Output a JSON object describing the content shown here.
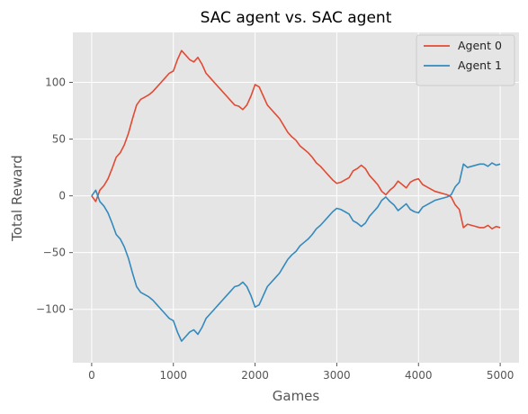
{
  "chart_data": {
    "type": "line",
    "title": "SAC agent vs. SAC agent",
    "xlabel": "Games",
    "ylabel": "Total Reward",
    "xlim": [
      -230,
      5230
    ],
    "ylim": [
      -147,
      144
    ],
    "xticks": [
      0,
      1000,
      2000,
      3000,
      4000,
      5000
    ],
    "yticks": [
      -100,
      -50,
      0,
      50,
      100
    ],
    "xtick_labels": [
      "0",
      "1000",
      "2000",
      "3000",
      "4000",
      "5000"
    ],
    "ytick_labels": [
      "−100",
      "−50",
      "0",
      "50",
      "100"
    ],
    "grid": true,
    "legend_position": "top-right",
    "series": [
      {
        "name": "Agent 0",
        "color": "#E24A33",
        "x": [
          0,
          50,
          100,
          150,
          200,
          250,
          300,
          350,
          400,
          450,
          500,
          550,
          600,
          650,
          700,
          750,
          800,
          850,
          900,
          950,
          1000,
          1050,
          1100,
          1150,
          1200,
          1250,
          1300,
          1350,
          1400,
          1450,
          1500,
          1550,
          1600,
          1650,
          1700,
          1750,
          1800,
          1850,
          1900,
          1950,
          2000,
          2050,
          2100,
          2150,
          2200,
          2250,
          2300,
          2350,
          2400,
          2450,
          2500,
          2550,
          2600,
          2650,
          2700,
          2750,
          2800,
          2850,
          2900,
          2950,
          3000,
          3050,
          3100,
          3150,
          3200,
          3250,
          3300,
          3350,
          3400,
          3450,
          3500,
          3550,
          3600,
          3650,
          3700,
          3750,
          3800,
          3850,
          3900,
          3950,
          4000,
          4050,
          4100,
          4150,
          4200,
          4250,
          4300,
          4350,
          4400,
          4450,
          4500,
          4550,
          4600,
          4650,
          4700,
          4750,
          4800,
          4850,
          4900,
          4950,
          5000
        ],
        "y": [
          0,
          -5,
          5,
          9,
          15,
          24,
          34,
          38,
          45,
          55,
          68,
          80,
          85,
          87,
          89,
          92,
          96,
          100,
          104,
          108,
          110,
          120,
          128,
          124,
          120,
          118,
          122,
          116,
          108,
          104,
          100,
          96,
          92,
          88,
          84,
          80,
          79,
          76,
          80,
          88,
          98,
          96,
          88,
          80,
          76,
          72,
          68,
          62,
          56,
          52,
          49,
          44,
          41,
          38,
          34,
          29,
          26,
          22,
          18,
          14,
          11,
          12,
          14,
          16,
          22,
          24,
          27,
          24,
          18,
          14,
          10,
          4,
          1,
          5,
          8,
          13,
          10,
          7,
          12,
          14,
          15,
          10,
          8,
          6,
          4,
          3,
          2,
          1,
          -1,
          -8,
          -12,
          -28,
          -25,
          -26,
          -27,
          -28,
          -28,
          -26,
          -29,
          -27,
          -28
        ]
      },
      {
        "name": "Agent 1",
        "color": "#348ABD",
        "x": [
          0,
          50,
          100,
          150,
          200,
          250,
          300,
          350,
          400,
          450,
          500,
          550,
          600,
          650,
          700,
          750,
          800,
          850,
          900,
          950,
          1000,
          1050,
          1100,
          1150,
          1200,
          1250,
          1300,
          1350,
          1400,
          1450,
          1500,
          1550,
          1600,
          1650,
          1700,
          1750,
          1800,
          1850,
          1900,
          1950,
          2000,
          2050,
          2100,
          2150,
          2200,
          2250,
          2300,
          2350,
          2400,
          2450,
          2500,
          2550,
          2600,
          2650,
          2700,
          2750,
          2800,
          2850,
          2900,
          2950,
          3000,
          3050,
          3100,
          3150,
          3200,
          3250,
          3300,
          3350,
          3400,
          3450,
          3500,
          3550,
          3600,
          3650,
          3700,
          3750,
          3800,
          3850,
          3900,
          3950,
          4000,
          4050,
          4100,
          4150,
          4200,
          4250,
          4300,
          4350,
          4400,
          4450,
          4500,
          4550,
          4600,
          4650,
          4700,
          4750,
          4800,
          4850,
          4900,
          4950,
          5000
        ],
        "y": [
          0,
          5,
          -5,
          -9,
          -15,
          -24,
          -34,
          -38,
          -45,
          -55,
          -68,
          -80,
          -85,
          -87,
          -89,
          -92,
          -96,
          -100,
          -104,
          -108,
          -110,
          -120,
          -128,
          -124,
          -120,
          -118,
          -122,
          -116,
          -108,
          -104,
          -100,
          -96,
          -92,
          -88,
          -84,
          -80,
          -79,
          -76,
          -80,
          -88,
          -98,
          -96,
          -88,
          -80,
          -76,
          -72,
          -68,
          -62,
          -56,
          -52,
          -49,
          -44,
          -41,
          -38,
          -34,
          -29,
          -26,
          -22,
          -18,
          -14,
          -11,
          -12,
          -14,
          -16,
          -22,
          -24,
          -27,
          -24,
          -18,
          -14,
          -10,
          -4,
          -1,
          -5,
          -8,
          -13,
          -10,
          -7,
          -12,
          -14,
          -15,
          -10,
          -8,
          -6,
          -4,
          -3,
          -2,
          -1,
          1,
          8,
          12,
          28,
          25,
          26,
          27,
          28,
          28,
          26,
          29,
          27,
          28
        ]
      }
    ]
  }
}
